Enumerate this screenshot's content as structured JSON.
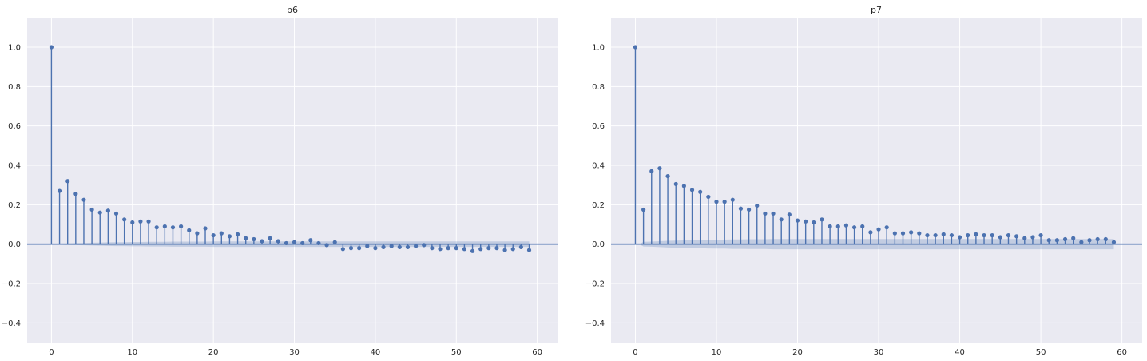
{
  "chart_data": [
    {
      "type": "stem",
      "title": "p6",
      "xlabel": "",
      "ylabel": "",
      "xlim": [
        -3,
        62.5
      ],
      "ylim": [
        -0.5,
        1.15
      ],
      "xticks": [
        0,
        10,
        20,
        30,
        40,
        50,
        60
      ],
      "xtick_labels": [
        "0",
        "10",
        "20",
        "30",
        "40",
        "50",
        "60"
      ],
      "yticks": [
        -0.4,
        -0.2,
        0.0,
        0.2,
        0.4,
        0.6,
        0.8,
        1.0
      ],
      "ytick_labels": [
        "−0.4",
        "−0.2",
        "0.0",
        "0.2",
        "0.4",
        "0.6",
        "0.8",
        "1.0"
      ],
      "grid": true,
      "colors": {
        "stem": "#4c72b0",
        "band": "#4c72b0",
        "background": "#eaeaf2",
        "grid": "#ffffff"
      },
      "x": [
        0,
        1,
        2,
        3,
        4,
        5,
        6,
        7,
        8,
        9,
        10,
        11,
        12,
        13,
        14,
        15,
        16,
        17,
        18,
        19,
        20,
        21,
        22,
        23,
        24,
        25,
        26,
        27,
        28,
        29,
        30,
        31,
        32,
        33,
        34,
        35,
        36,
        37,
        38,
        39,
        40,
        41,
        42,
        43,
        44,
        45,
        46,
        47,
        48,
        49,
        50,
        51,
        52,
        53,
        54,
        55,
        56,
        57,
        58,
        59
      ],
      "values": [
        1.0,
        0.27,
        0.32,
        0.255,
        0.225,
        0.175,
        0.16,
        0.17,
        0.155,
        0.125,
        0.11,
        0.115,
        0.115,
        0.085,
        0.09,
        0.085,
        0.09,
        0.07,
        0.055,
        0.08,
        0.045,
        0.055,
        0.04,
        0.05,
        0.03,
        0.025,
        0.015,
        0.03,
        0.015,
        0.005,
        0.01,
        0.005,
        0.02,
        0.005,
        -0.005,
        0.01,
        -0.025,
        -0.02,
        -0.02,
        -0.01,
        -0.02,
        -0.015,
        -0.01,
        -0.015,
        -0.015,
        -0.01,
        -0.005,
        -0.02,
        -0.025,
        -0.02,
        -0.02,
        -0.025,
        -0.035,
        -0.025,
        -0.02,
        -0.02,
        -0.03,
        -0.025,
        -0.015,
        -0.03
      ],
      "confint": [
        0,
        0.003,
        0.004,
        0.005,
        0.006,
        0.007,
        0.008,
        0.009,
        0.01,
        0.01,
        0.011,
        0.011,
        0.012,
        0.012,
        0.012,
        0.013,
        0.013,
        0.013,
        0.013,
        0.013,
        0.014,
        0.014,
        0.014,
        0.014,
        0.014,
        0.014,
        0.014,
        0.014,
        0.014,
        0.014,
        0.014,
        0.014,
        0.014,
        0.014,
        0.014,
        0.014,
        0.014,
        0.014,
        0.014,
        0.014,
        0.014,
        0.014,
        0.014,
        0.014,
        0.014,
        0.014,
        0.014,
        0.014,
        0.014,
        0.014,
        0.014,
        0.014,
        0.014,
        0.014,
        0.014,
        0.014,
        0.014,
        0.014,
        0.014,
        0.014
      ]
    },
    {
      "type": "stem",
      "title": "p7",
      "xlabel": "",
      "ylabel": "",
      "xlim": [
        -3,
        62.5
      ],
      "ylim": [
        -0.5,
        1.15
      ],
      "xticks": [
        0,
        10,
        20,
        30,
        40,
        50,
        60
      ],
      "xtick_labels": [
        "0",
        "10",
        "20",
        "30",
        "40",
        "50",
        "60"
      ],
      "yticks": [
        -0.4,
        -0.2,
        0.0,
        0.2,
        0.4,
        0.6,
        0.8,
        1.0
      ],
      "ytick_labels": [
        "−0.4",
        "−0.2",
        "0.0",
        "0.2",
        "0.4",
        "0.6",
        "0.8",
        "1.0"
      ],
      "grid": true,
      "colors": {
        "stem": "#4c72b0",
        "band": "#4c72b0",
        "background": "#eaeaf2",
        "grid": "#ffffff"
      },
      "x": [
        0,
        1,
        2,
        3,
        4,
        5,
        6,
        7,
        8,
        9,
        10,
        11,
        12,
        13,
        14,
        15,
        16,
        17,
        18,
        19,
        20,
        21,
        22,
        23,
        24,
        25,
        26,
        27,
        28,
        29,
        30,
        31,
        32,
        33,
        34,
        35,
        36,
        37,
        38,
        39,
        40,
        41,
        42,
        43,
        44,
        45,
        46,
        47,
        48,
        49,
        50,
        51,
        52,
        53,
        54,
        55,
        56,
        57,
        58,
        59
      ],
      "values": [
        1.0,
        0.175,
        0.37,
        0.385,
        0.345,
        0.305,
        0.295,
        0.275,
        0.265,
        0.24,
        0.215,
        0.215,
        0.225,
        0.18,
        0.175,
        0.195,
        0.155,
        0.155,
        0.125,
        0.15,
        0.12,
        0.115,
        0.11,
        0.125,
        0.09,
        0.09,
        0.095,
        0.085,
        0.09,
        0.06,
        0.075,
        0.085,
        0.055,
        0.055,
        0.06,
        0.055,
        0.045,
        0.045,
        0.05,
        0.045,
        0.035,
        0.045,
        0.05,
        0.045,
        0.045,
        0.035,
        0.045,
        0.04,
        0.03,
        0.035,
        0.045,
        0.02,
        0.02,
        0.025,
        0.03,
        0.01,
        0.02,
        0.025,
        0.025,
        0.01
      ],
      "confint": [
        0,
        0.012,
        0.013,
        0.015,
        0.017,
        0.018,
        0.019,
        0.02,
        0.021,
        0.022,
        0.023,
        0.023,
        0.024,
        0.024,
        0.025,
        0.025,
        0.025,
        0.026,
        0.026,
        0.026,
        0.026,
        0.026,
        0.026,
        0.026,
        0.026,
        0.026,
        0.026,
        0.026,
        0.026,
        0.026,
        0.026,
        0.026,
        0.026,
        0.026,
        0.026,
        0.026,
        0.026,
        0.026,
        0.026,
        0.026,
        0.026,
        0.026,
        0.026,
        0.026,
        0.026,
        0.026,
        0.026,
        0.026,
        0.026,
        0.026,
        0.026,
        0.026,
        0.026,
        0.026,
        0.026,
        0.026,
        0.026,
        0.026,
        0.026,
        0.026
      ]
    }
  ]
}
